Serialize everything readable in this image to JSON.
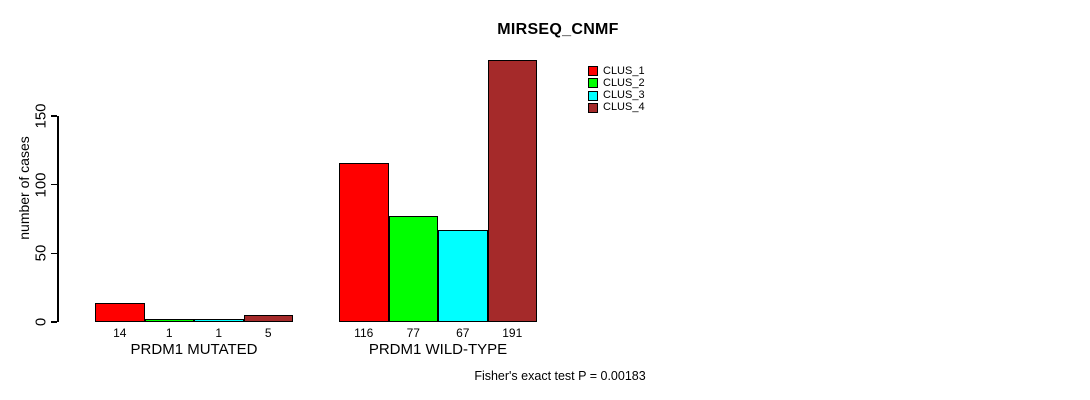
{
  "title": "MIRSEQ_CNMF",
  "footer": {
    "caption": "Fisher's exact test P = 0.00183"
  },
  "chart_data": {
    "type": "bar",
    "title": "MIRSEQ_CNMF",
    "xlabel": "",
    "ylabel": "number of cases",
    "ylim": [
      0,
      150
    ],
    "yticks": [
      0,
      50,
      100,
      150
    ],
    "grid": false,
    "legend_position": "top-right-inside",
    "categories": [
      "PRDM1 MUTATED",
      "PRDM1 WILD-TYPE"
    ],
    "series": [
      {
        "name": "CLUS_1",
        "color": "#FF0000",
        "values": [
          14,
          116
        ]
      },
      {
        "name": "CLUS_2",
        "color": "#00FF00",
        "values": [
          1,
          77
        ]
      },
      {
        "name": "CLUS_3",
        "color": "#00FFFF",
        "values": [
          1,
          67
        ]
      },
      {
        "name": "CLUS_4",
        "color": "#A52A2A",
        "values": [
          5,
          191
        ]
      }
    ],
    "bar_value_labels": [
      [
        14,
        1,
        1,
        5
      ],
      [
        116,
        77,
        67,
        191
      ]
    ],
    "annotation": "Fisher's exact test P = 0.00183"
  }
}
